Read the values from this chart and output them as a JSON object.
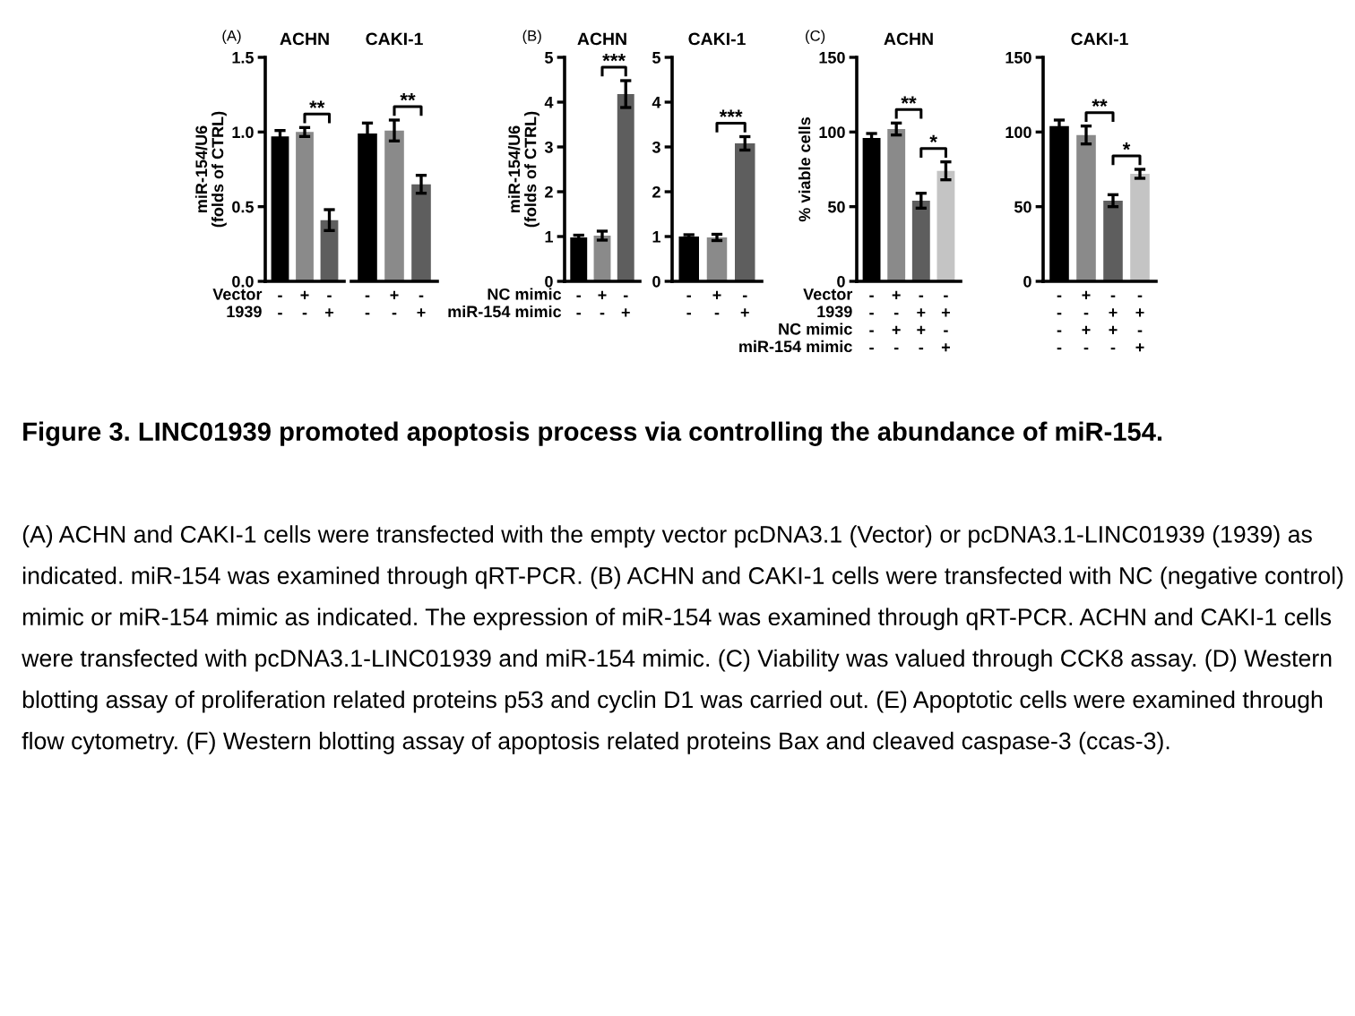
{
  "chart_data": [
    {
      "type": "bar",
      "subtitle": "(A)",
      "title": "ACHN",
      "ylabel": "miR-154/U6\n(folds of CTRL)",
      "xlabel": "Vector\n1939",
      "categories": [
        "-\n-",
        "+\n-",
        "-\n+"
      ],
      "values": [
        0.97,
        1.0,
        0.41
      ],
      "errors": [
        0.04,
        0.03,
        0.07
      ],
      "colors": [
        "#000000",
        "#8a8a8a",
        "#5e5e5e"
      ],
      "ylim": [
        0,
        1.5
      ],
      "yticks": [
        {
          "value": 0,
          "label": "0.0"
        },
        {
          "value": 0.5,
          "label": "0.5"
        },
        {
          "value": 1.0,
          "label": "1.0"
        },
        {
          "value": 1.5,
          "label": "1.5"
        }
      ],
      "annotations": [
        "**"
      ]
    },
    {
      "type": "bar",
      "title": "CAKI-1",
      "categories": [
        "-\n-",
        "+\n-",
        "-\n+"
      ],
      "values": [
        0.99,
        1.01,
        0.65
      ],
      "errors": [
        0.07,
        0.07,
        0.06
      ],
      "colors": [
        "#000000",
        "#8a8a8a",
        "#5e5e5e"
      ],
      "ylim": [
        0,
        1.5
      ],
      "tick_labels": "x",
      "annotations": [
        "**"
      ]
    },
    {
      "type": "bar",
      "subtitle": "(B)",
      "title": "ACHN",
      "ylabel": "miR-154/U6\n(folds of CTRL)",
      "xlabel": "NC mimic\nmiR-154 mimic",
      "categories": [
        "-\n-",
        "+\n-",
        "-\n+"
      ],
      "values": [
        0.98,
        1.02,
        4.18
      ],
      "errors": [
        0.05,
        0.1,
        0.3
      ],
      "colors": [
        "#000000",
        "#8a8a8a",
        "#5e5e5e"
      ],
      "ylim": [
        0,
        5
      ],
      "yticks": [
        0,
        1,
        2,
        3,
        4,
        5
      ],
      "annotations": [
        "***"
      ]
    },
    {
      "type": "bar",
      "title": "CAKI-1",
      "categories": [
        "-\n-",
        "+\n-",
        "-\n+"
      ],
      "values": [
        1.0,
        0.98,
        3.08
      ],
      "errors": [
        0.04,
        0.07,
        0.15
      ],
      "colors": [
        "#000000",
        "#8a8a8a",
        "#5e5e5e"
      ],
      "ylim": [
        0,
        5
      ],
      "yticks": [
        0,
        1,
        2,
        3,
        4,
        5
      ],
      "annotations": [
        "***"
      ]
    },
    {
      "type": "bar",
      "subtitle": "(C)",
      "title": "ACHN",
      "ylabel": "% viable cells",
      "xlabel": "Vector\n1939\nNC mimic\nmiR-154 mimic",
      "categories": [
        "-\n-\n-\n-",
        "+\n-\n+\n-",
        "-\n+\n+\n-",
        "-\n+\n-\n+"
      ],
      "values": [
        96,
        102,
        54,
        74
      ],
      "errors": [
        3,
        4,
        5,
        6
      ],
      "colors": [
        "#000000",
        "#8a8a8a",
        "#5e5e5e",
        "#c4c4c4"
      ],
      "ylim": [
        0,
        150
      ],
      "yticks": [
        0,
        50,
        100,
        150
      ],
      "annotations": [
        "**",
        "*"
      ]
    },
    {
      "type": "bar",
      "title": "CAKI-1",
      "categories": [
        "-\n-\n-\n-",
        "+\n-\n+\n-",
        "-\n+\n+\n-",
        "-\n+\n-\n+"
      ],
      "values": [
        104,
        98,
        54,
        72
      ],
      "errors": [
        4,
        6,
        4,
        3
      ],
      "colors": [
        "#000000",
        "#8a8a8a",
        "#5e5e5e",
        "#c4c4c4"
      ],
      "ylim": [
        0,
        150
      ],
      "yticks": [
        0,
        50,
        100,
        150
      ],
      "annotations": [
        "**",
        "*"
      ]
    },
    {
      "type": "other",
      "title": "Figure 3. LINC01939 promoted apoptosis process via controlling the abundance of miR-154.",
      "annotations": [
        "(A) ACHN and CAKI-1 cells were transfected with the empty vector pcDNA3.1 (Vector) or pcDNA3.1-LINC01939 (1939) as indicated. miR-154 was examined through qRT-PCR. (B) ACHN and CAKI-1 cells were transfected with NC (negative control) mimic or miR-154 mimic as indicated. The expression of miR-154 was examined through qRT-PCR. ACHN and CAKI-1 cells were transfected with pcDNA3.1-LINC01939 and miR-154 mimic. (C) Viability was valued through CCK8 assay. (D) Western blotting assay of proliferation related proteins p53 and cyclin D1 was carried out. (E) Apoptotic cells were examined through flow cytometry. (F) Western blotting assay of apoptosis related proteins Bax and cleaved caspase-3 (ccas-3)."
      ]
    }
  ]
}
